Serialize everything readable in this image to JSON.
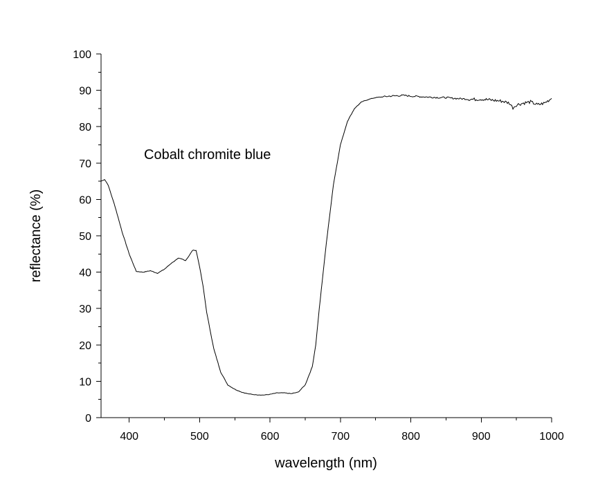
{
  "chart_data": {
    "type": "line",
    "title": "",
    "xlabel": "wavelength (nm)",
    "ylabel": "reflectance (%)",
    "xlim": [
      360,
      1000
    ],
    "ylim": [
      0,
      100
    ],
    "x_major_ticks": [
      400,
      500,
      600,
      700,
      800,
      900,
      1000
    ],
    "y_major_ticks": [
      0,
      10,
      20,
      30,
      40,
      50,
      60,
      70,
      80,
      90,
      100
    ],
    "x_tick_labels": [
      "400",
      "500",
      "600",
      "700",
      "800",
      "900",
      "1000"
    ],
    "y_tick_labels": [
      "0",
      "10",
      "20",
      "30",
      "40",
      "50",
      "60",
      "70",
      "80",
      "90",
      "100"
    ],
    "grid": false,
    "annotation": "Cobalt chromite blue",
    "line_color": "#000000",
    "series": [
      {
        "x": [
          360,
          365,
          370,
          380,
          390,
          400,
          410,
          420,
          430,
          440,
          450,
          460,
          470,
          475,
          480,
          485,
          490,
          495,
          500,
          505,
          510,
          520,
          530,
          540,
          550,
          560,
          570,
          580,
          590,
          600,
          610,
          620,
          630,
          640,
          650,
          660,
          665,
          670,
          680,
          690,
          700,
          710,
          720,
          730,
          740,
          750,
          760,
          770,
          780,
          790,
          800,
          810,
          820,
          830,
          840,
          850,
          860,
          870,
          880,
          890,
          900,
          910,
          920,
          930,
          940,
          945,
          950,
          960,
          970,
          980,
          990,
          1000
        ],
        "y": [
          65,
          65.5,
          64,
          58,
          51,
          45,
          40.2,
          40,
          40.4,
          39.7,
          40.8,
          42.5,
          43.8,
          43.6,
          43.2,
          44.5,
          46,
          46,
          41.5,
          36,
          29,
          19,
          12.5,
          9,
          7.8,
          7,
          6.5,
          6.3,
          6.2,
          6.4,
          6.8,
          6.8,
          6.6,
          7.0,
          9,
          14,
          20,
          30,
          48,
          64,
          75,
          81.5,
          85,
          86.8,
          87.5,
          88,
          88.2,
          88.4,
          88.5,
          88.6,
          88.4,
          88.3,
          88.2,
          88.1,
          88,
          88,
          87.8,
          87.7,
          87.6,
          87.5,
          87.6,
          87.4,
          87.2,
          87,
          86.5,
          85.2,
          86,
          86.5,
          86.8,
          86,
          86.5,
          87.8
        ]
      }
    ]
  }
}
